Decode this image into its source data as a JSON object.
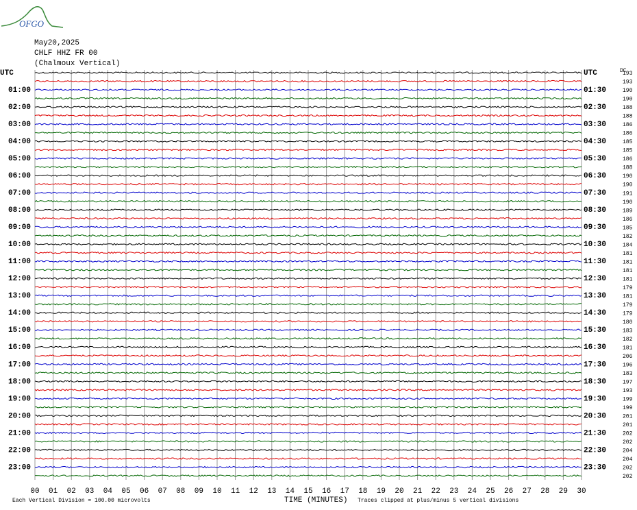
{
  "header": {
    "logo": "OFGO",
    "date": "May20,2025",
    "station": "CHLF HHZ FR 00",
    "location": "(Chalmoux Vertical)"
  },
  "left_labels": [
    "UTC",
    "01:00",
    "02:00",
    "03:00",
    "04:00",
    "05:00",
    "06:00",
    "07:00",
    "08:00",
    "09:00",
    "10:00",
    "11:00",
    "12:00",
    "13:00",
    "14:00",
    "15:00",
    "16:00",
    "17:00",
    "18:00",
    "19:00",
    "20:00",
    "21:00",
    "22:00",
    "23:00"
  ],
  "right_labels": [
    "UTC",
    "01:30",
    "02:30",
    "03:30",
    "04:30",
    "05:30",
    "06:30",
    "07:30",
    "08:30",
    "09:30",
    "10:30",
    "11:30",
    "12:30",
    "13:30",
    "14:30",
    "15:30",
    "16:30",
    "17:30",
    "18:30",
    "19:30",
    "20:30",
    "21:30",
    "22:30",
    "23:30"
  ],
  "dc_label": "DC",
  "dc_values": [
    193,
    193,
    190,
    190,
    188,
    188,
    186,
    186,
    185,
    185,
    186,
    188,
    190,
    190,
    191,
    190,
    189,
    186,
    185,
    182,
    184,
    181,
    181,
    181,
    181,
    179,
    181,
    179,
    179,
    180,
    183,
    182,
    181,
    206,
    196,
    183,
    197,
    193,
    199,
    199,
    201,
    201,
    202,
    202,
    204,
    204,
    202,
    202
  ],
  "x_axis": {
    "ticks": [
      "00",
      "01",
      "02",
      "03",
      "04",
      "05",
      "06",
      "07",
      "08",
      "09",
      "10",
      "11",
      "12",
      "13",
      "14",
      "15",
      "16",
      "17",
      "18",
      "19",
      "20",
      "21",
      "22",
      "23",
      "24",
      "25",
      "26",
      "27",
      "28",
      "29",
      "30"
    ],
    "title": "TIME (MINUTES)"
  },
  "footer": {
    "scale": "Each Vertical Division =  100.00 microvolts",
    "clip": "Traces clipped at plus/minus 5 vertical divisions"
  }
}
